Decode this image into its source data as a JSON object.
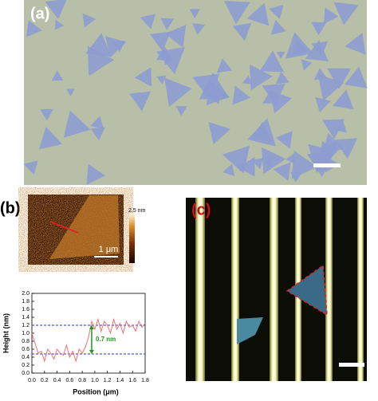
{
  "panels": {
    "a": "(a)",
    "b": "(b)",
    "c": "(c)"
  },
  "afm": {
    "colorbar_label": "2.5 nm",
    "scale_label": "1 μm"
  },
  "chart_data": {
    "type": "line",
    "xlabel": "Position (μm)",
    "ylabel": "Height (nm)",
    "annotation": "0.7 nm",
    "x": [
      0.0,
      0.05,
      0.1,
      0.15,
      0.2,
      0.25,
      0.3,
      0.35,
      0.4,
      0.45,
      0.5,
      0.55,
      0.6,
      0.65,
      0.7,
      0.75,
      0.8,
      0.85,
      0.9,
      0.95,
      1.0,
      1.05,
      1.1,
      1.15,
      1.2,
      1.25,
      1.3,
      1.35,
      1.4,
      1.45,
      1.5,
      1.55,
      1.6,
      1.65,
      1.7,
      1.75,
      1.8
    ],
    "series": [
      {
        "color": "#f07070",
        "values": [
          1.0,
          0.75,
          0.5,
          0.55,
          0.3,
          0.6,
          0.5,
          0.35,
          0.6,
          0.5,
          0.45,
          0.7,
          0.4,
          0.55,
          0.3,
          0.6,
          0.5,
          0.65,
          0.9,
          1.3,
          1.1,
          1.35,
          1.05,
          1.3,
          1.2,
          1.0,
          1.35,
          1.1,
          1.25,
          1.0,
          1.3,
          1.15,
          1.2,
          1.05,
          1.3,
          1.15,
          1.25
        ]
      }
    ],
    "hlines": [
      0.48,
      1.2
    ],
    "hline_color": "#2233cc",
    "xlim": [
      0,
      1.8
    ],
    "ylim": [
      0,
      2.0
    ],
    "xticks": [
      {
        "value": 0,
        "label": "0.0"
      },
      0.2,
      0.4,
      0.6,
      0.8,
      {
        "value": 1,
        "label": "1.0"
      },
      1.2,
      1.4,
      1.6,
      1.8
    ],
    "yticks": [
      {
        "value": 0,
        "label": "0.0"
      },
      0.2,
      0.4,
      0.6,
      0.8,
      {
        "value": 1,
        "label": "1.0"
      },
      1.2,
      1.4,
      1.6,
      1.8,
      {
        "value": 2,
        "label": "2.0"
      }
    ]
  }
}
